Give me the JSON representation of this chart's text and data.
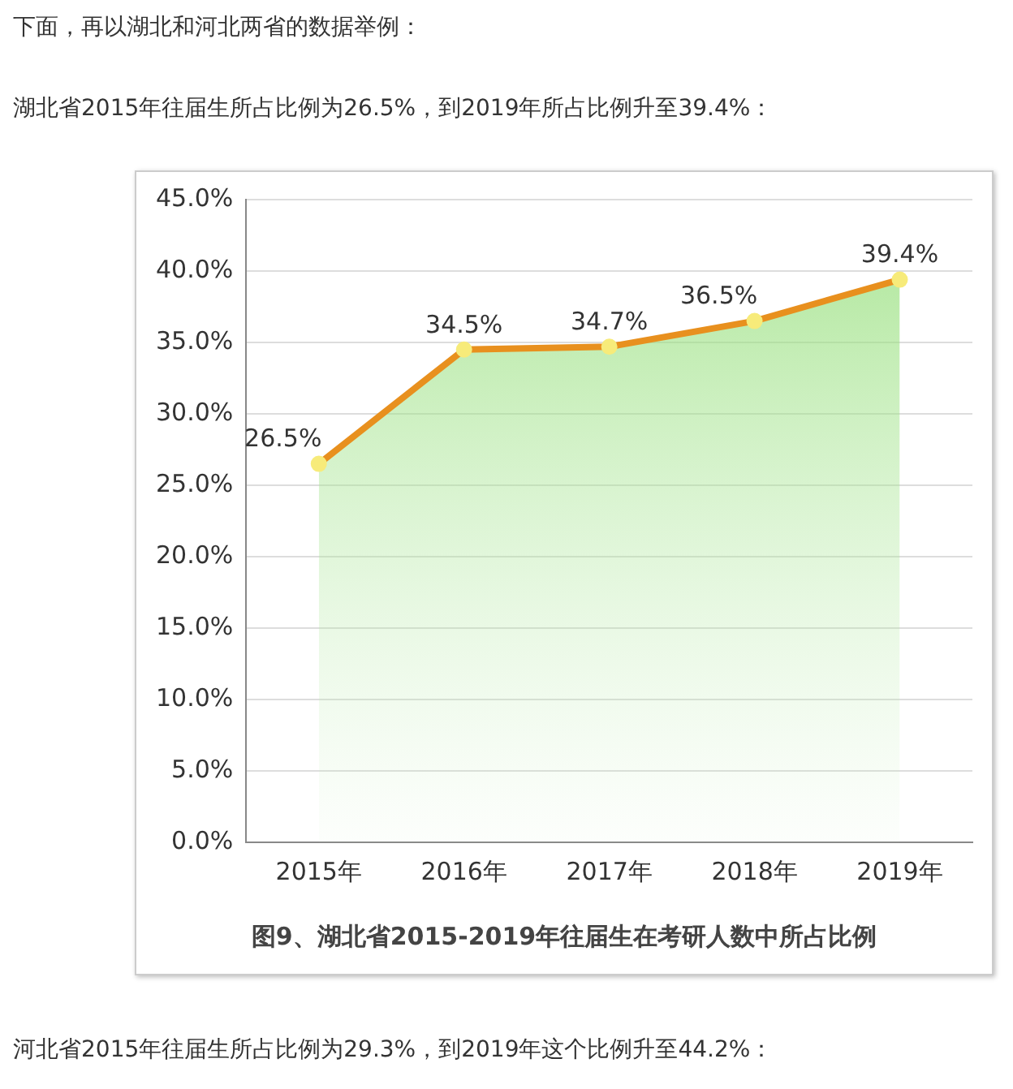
{
  "chart_data": {
    "type": "area",
    "title": "图9、湖北省2015-2019年往届生在考研人数中所占比例",
    "annotations": [
      "下面，再以湖北和河北两省的数据举例：",
      "湖北省2015年往届生所占比例为26.5%，到2019年所占比例升至39.4%：",
      "河北省2015年往届生所占比例为29.3%，到2019年这个比例升至44.2%："
    ],
    "categories": [
      "2015年",
      "2016年",
      "2017年",
      "2018年",
      "2019年"
    ],
    "series": [
      {
        "color": "#e8901e",
        "values": [
          26.5,
          34.5,
          34.7,
          36.5,
          39.4
        ],
        "value_labels": [
          "26.5%",
          "34.5%",
          "34.7%",
          "36.5%",
          "39.4%"
        ]
      }
    ],
    "ylim": [
      0,
      45
    ],
    "yticks": [
      {
        "value": 0,
        "label": "0.0%"
      },
      {
        "value": 5,
        "label": "5.0%"
      },
      {
        "value": 10,
        "label": "10.0%"
      },
      {
        "value": 15,
        "label": "15.0%"
      },
      {
        "value": 20,
        "label": "20.0%"
      },
      {
        "value": 25,
        "label": "25.0%"
      },
      {
        "value": 30,
        "label": "30.0%"
      },
      {
        "value": 35,
        "label": "35.0%"
      },
      {
        "value": 40,
        "label": "40.0%"
      },
      {
        "value": 45,
        "label": "45.0%"
      }
    ],
    "grid": "y",
    "legend": false,
    "marker": "circle",
    "line_style": "solid"
  }
}
